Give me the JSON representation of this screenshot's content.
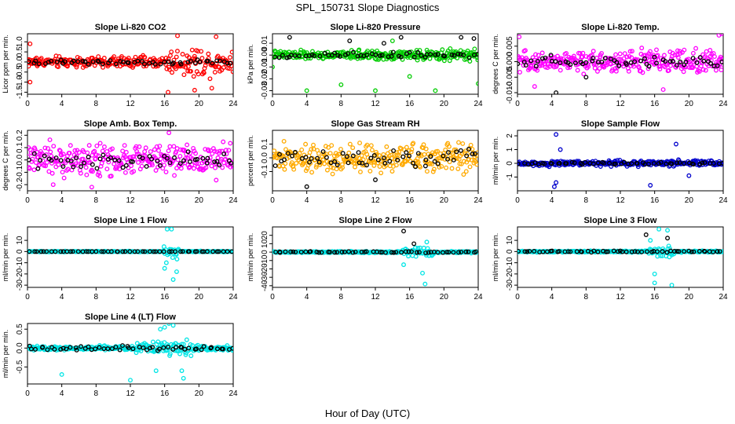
{
  "figure": {
    "title": "SPL_150731  Slope Diagnostics",
    "xlabel": "Hour of Day (UTC)"
  },
  "chart_data": [
    {
      "type": "scatter",
      "title": "Slope Li-820 CO2",
      "ylabel": "Licor ppm per min.",
      "color": "#ff0000",
      "xlim": [
        0,
        24
      ],
      "xticks": [
        0,
        4,
        8,
        12,
        16,
        20,
        24
      ],
      "ylim": [
        -1.6,
        1.4
      ],
      "yticks": [
        -1.5,
        -1.0,
        -0.5,
        0.0,
        0.5,
        1.0
      ],
      "ytick_labels": [
        "-1.5",
        "-1.0",
        "-0.5",
        "0.0",
        "0.5",
        "1.0"
      ],
      "spread": [
        [
          0,
          0.4
        ],
        [
          16,
          0.4
        ],
        [
          16.5,
          1.0
        ],
        [
          24,
          0.9
        ]
      ],
      "black_spread": 0.15,
      "outliers": [
        [
          0.3,
          -1.0
        ],
        [
          0.3,
          0.9
        ],
        [
          16.4,
          -1.5
        ],
        [
          17.5,
          1.3
        ],
        [
          19.5,
          -1.4
        ],
        [
          21.5,
          -1.3
        ],
        [
          22,
          1.25
        ]
      ],
      "black_outliers": []
    },
    {
      "type": "scatter",
      "title": "Slope Li-820 Pressure",
      "ylabel": "kPa per min.",
      "color": "#00cc00",
      "xlim": [
        0,
        24
      ],
      "xticks": [
        0,
        4,
        8,
        12,
        16,
        20,
        24
      ],
      "ylim": [
        -0.033,
        0.018
      ],
      "yticks": [
        -0.03,
        -0.02,
        -0.01,
        0.0,
        0.01
      ],
      "ytick_labels": [
        "-0.03",
        "-0.02",
        "-0.01",
        "0.00",
        "0.01"
      ],
      "spread": [
        [
          0,
          0.005
        ],
        [
          24,
          0.006
        ]
      ],
      "black_spread": 0.003,
      "outliers": [
        [
          4,
          -0.03
        ],
        [
          8,
          -0.025
        ],
        [
          12,
          -0.03
        ],
        [
          16,
          -0.018
        ],
        [
          19,
          -0.03
        ],
        [
          24,
          -0.024
        ],
        [
          0,
          -0.01
        ],
        [
          14,
          0.012
        ]
      ],
      "black_outliers": [
        [
          2,
          0.015
        ],
        [
          9,
          0.012
        ],
        [
          13,
          0.01
        ],
        [
          15,
          0.015
        ],
        [
          22,
          0.015
        ],
        [
          23.5,
          0.014
        ]
      ]
    },
    {
      "type": "scatter",
      "title": "Slope Li-820 Temp.",
      "ylabel": "degrees C per min.",
      "color": "#ff00ff",
      "xlim": [
        0,
        24
      ],
      "xticks": [
        0,
        4,
        8,
        12,
        16,
        20,
        24
      ],
      "ylim": [
        -0.0105,
        0.009
      ],
      "yticks": [
        -0.01,
        -0.005,
        0.0,
        0.005
      ],
      "ytick_labels": [
        "-0.010",
        "-0.005",
        "0.000",
        "0.005"
      ],
      "spread": [
        [
          0,
          0.004
        ],
        [
          24,
          0.007
        ]
      ],
      "black_spread": 0.0025,
      "outliers": [
        [
          0.2,
          0.008
        ],
        [
          2,
          -0.008
        ],
        [
          17,
          -0.009
        ],
        [
          23.5,
          0.0085
        ],
        [
          23.8,
          0.009
        ]
      ],
      "black_outliers": [
        [
          4.5,
          -0.01
        ],
        [
          8,
          -0.005
        ]
      ]
    },
    {
      "type": "scatter",
      "title": "Slope Amb. Box Temp.",
      "ylabel": "degrees C per min.",
      "color": "#ff00ff",
      "xlim": [
        0,
        24
      ],
      "xticks": [
        0,
        4,
        8,
        12,
        16,
        20,
        24
      ],
      "ylim": [
        -0.25,
        0.24
      ],
      "yticks": [
        -0.2,
        -0.1,
        0.0,
        0.1,
        0.2
      ],
      "ytick_labels": [
        "-0.2",
        "-0.1",
        "0.0",
        "0.1",
        "0.2"
      ],
      "spread": [
        [
          0,
          0.18
        ],
        [
          24,
          0.18
        ]
      ],
      "black_spread": 0.08,
      "outliers": [
        [
          7.5,
          -0.22
        ],
        [
          16.5,
          0.22
        ],
        [
          3,
          -0.2
        ]
      ],
      "black_outliers": []
    },
    {
      "type": "scatter",
      "title": "Slope Gas Stream RH",
      "ylabel": "percent per min.",
      "color": "#ffaa00",
      "xlim": [
        0,
        24
      ],
      "xticks": [
        0,
        4,
        8,
        12,
        16,
        20,
        24
      ],
      "ylim": [
        -0.24,
        0.2
      ],
      "yticks": [
        -0.1,
        0.0,
        0.1
      ],
      "ytick_labels": [
        "-0.1",
        "0.0",
        "0.1"
      ],
      "spread": [
        [
          0,
          0.15
        ],
        [
          24,
          0.15
        ]
      ],
      "black_spread": 0.08,
      "outliers": [],
      "black_outliers": [
        [
          4,
          -0.21
        ],
        [
          12,
          -0.16
        ]
      ]
    },
    {
      "type": "scatter",
      "title": "Slope Sample Flow",
      "ylabel": "ml/min per min.",
      "color": "#0000cc",
      "xlim": [
        0,
        24
      ],
      "xticks": [
        0,
        4,
        8,
        12,
        16,
        20,
        24
      ],
      "ylim": [
        -2.0,
        2.4
      ],
      "yticks": [
        -1,
        0,
        1,
        2
      ],
      "ytick_labels": [
        "-1",
        "0",
        "1",
        "2"
      ],
      "spread": [
        [
          0,
          0.3
        ],
        [
          24,
          0.3
        ]
      ],
      "black_spread": 0.1,
      "outliers": [
        [
          4.5,
          2.1
        ],
        [
          4.5,
          -1.4
        ],
        [
          4.3,
          -1.7
        ],
        [
          5,
          1.0
        ],
        [
          15.5,
          -1.6
        ],
        [
          18.5,
          1.4
        ],
        [
          20,
          -0.9
        ]
      ],
      "black_outliers": []
    },
    {
      "type": "scatter",
      "title": "Slope Line 1 Flow",
      "ylabel": "ml/min per min.",
      "color": "#00e5e5",
      "xlim": [
        0,
        24
      ],
      "xticks": [
        0,
        4,
        8,
        12,
        16,
        20,
        24
      ],
      "ylim": [
        -32,
        22
      ],
      "yticks": [
        -30,
        -20,
        -10,
        0,
        10
      ],
      "ytick_labels": [
        "-30",
        "-20",
        "-10",
        "0",
        "10"
      ],
      "spread": [
        [
          0,
          0.6
        ],
        [
          15.8,
          0.6
        ],
        [
          16,
          8
        ],
        [
          17.5,
          8
        ],
        [
          17.8,
          0.6
        ],
        [
          24,
          0.6
        ]
      ],
      "black_spread": 0.1,
      "outliers": [
        [
          16.3,
          20
        ],
        [
          16.8,
          20
        ],
        [
          16,
          -15
        ],
        [
          17,
          -25
        ],
        [
          16.2,
          -10
        ],
        [
          17.4,
          -18
        ]
      ],
      "black_outliers": []
    },
    {
      "type": "scatter",
      "title": "Slope Line 2 Flow",
      "ylabel": "ml/min per min.",
      "color": "#00e5e5",
      "xlim": [
        0,
        24
      ],
      "xticks": [
        0,
        4,
        8,
        12,
        16,
        20,
        24
      ],
      "ylim": [
        -42,
        30
      ],
      "yticks": [
        -40,
        -30,
        -20,
        -10,
        0,
        10,
        20
      ],
      "ytick_labels": [
        "-40",
        "-30",
        "-20",
        "-10",
        "0",
        "10",
        "20"
      ],
      "spread": [
        [
          0,
          1.5
        ],
        [
          15,
          1.5
        ],
        [
          15.5,
          8
        ],
        [
          18.5,
          8
        ],
        [
          19,
          1.5
        ],
        [
          24,
          1.5
        ]
      ],
      "black_spread": 1.0,
      "outliers": [
        [
          15.3,
          -15
        ],
        [
          17.5,
          -25
        ],
        [
          17.8,
          -38
        ],
        [
          18,
          12
        ]
      ],
      "black_outliers": [
        [
          15.3,
          25
        ],
        [
          16.5,
          10
        ]
      ]
    },
    {
      "type": "scatter",
      "title": "Slope Line 3 Flow",
      "ylabel": "ml/min per min.",
      "color": "#00e5e5",
      "xlim": [
        0,
        24
      ],
      "xticks": [
        0,
        4,
        8,
        12,
        16,
        20,
        24
      ],
      "ylim": [
        -32,
        22
      ],
      "yticks": [
        -30,
        -20,
        -10,
        0,
        10
      ],
      "ytick_labels": [
        "-30",
        "-20",
        "-10",
        "0",
        "10"
      ],
      "spread": [
        [
          0,
          1
        ],
        [
          15,
          1
        ],
        [
          15.5,
          6
        ],
        [
          18,
          6
        ],
        [
          18.5,
          1
        ],
        [
          24,
          1
        ]
      ],
      "black_spread": 0.8,
      "outliers": [
        [
          16.5,
          20
        ],
        [
          17.5,
          19
        ],
        [
          16,
          -20
        ],
        [
          16,
          -28
        ],
        [
          18,
          -30
        ],
        [
          15.5,
          10
        ]
      ],
      "black_outliers": [
        [
          15,
          15
        ],
        [
          17.5,
          12
        ]
      ]
    },
    {
      "type": "scatter",
      "title": "Slope Line 4 (LT) Flow",
      "ylabel": "ml/min per min.",
      "color": "#00e5e5",
      "xlim": [
        0,
        24
      ],
      "xticks": [
        0,
        4,
        8,
        12,
        16,
        20,
        24
      ],
      "ylim": [
        -0.95,
        0.65
      ],
      "yticks": [
        -0.5,
        0.0,
        0.5
      ],
      "ytick_labels": [
        "-0.5",
        "0.0",
        "0.5"
      ],
      "spread": [
        [
          0,
          0.08
        ],
        [
          12,
          0.08
        ],
        [
          13,
          0.2
        ],
        [
          19,
          0.3
        ],
        [
          20,
          0.1
        ],
        [
          24,
          0.08
        ]
      ],
      "black_spread": 0.08,
      "outliers": [
        [
          4,
          -0.7
        ],
        [
          12,
          -0.85
        ],
        [
          16,
          0.55
        ],
        [
          16.5,
          0.65
        ],
        [
          17,
          0.6
        ],
        [
          18,
          -0.6
        ],
        [
          18.2,
          -0.8
        ],
        [
          15,
          -0.6
        ],
        [
          15.5,
          0.5
        ]
      ],
      "black_outliers": []
    }
  ]
}
